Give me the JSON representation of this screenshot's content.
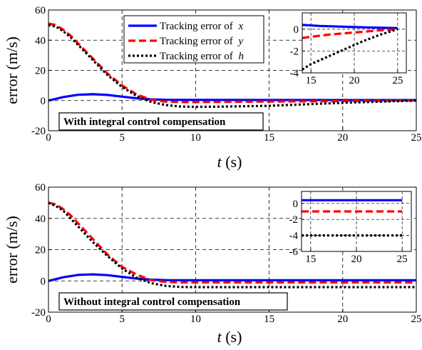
{
  "chart_data": [
    {
      "type": "line",
      "ylabel": "error (m/s)",
      "xlabel": "t (s)",
      "xlabel_var": "t",
      "xlabel_unit": "(s)",
      "xlim": [
        0,
        25
      ],
      "ylim": [
        -20,
        60
      ],
      "xticks": [
        0,
        5,
        10,
        15,
        20,
        25
      ],
      "yticks": [
        -20,
        0,
        20,
        40,
        60
      ],
      "grid": true,
      "legend_position": "top-center",
      "annotation": "With  integral control compensation",
      "series": [
        {
          "name": "Tracking error of x",
          "legend_text": "Tracking error of ",
          "legend_var": "x",
          "color": "#0000ff",
          "style": "solid",
          "x": [
            0,
            1,
            2,
            3,
            4,
            5,
            6,
            7,
            8,
            10,
            25
          ],
          "y": [
            0,
            2.3,
            3.8,
            4.2,
            3.7,
            2.6,
            1.5,
            0.8,
            0.5,
            0.4,
            0.3
          ]
        },
        {
          "name": "Tracking error of y",
          "legend_text": "Tracking error of ",
          "legend_var": "y",
          "color": "#ff0000",
          "style": "dash",
          "x": [
            0,
            0.5,
            1,
            1.5,
            2,
            3,
            4,
            5,
            6,
            7,
            8,
            9,
            10,
            15,
            25
          ],
          "y": [
            51,
            50,
            47,
            43,
            38,
            28,
            18,
            10,
            4,
            0.5,
            -0.8,
            -1,
            -1,
            -0.7,
            0
          ]
        },
        {
          "name": "Tracking error of h",
          "legend_text": "Tracking error of ",
          "legend_var": "h",
          "color": "#000000",
          "style": "dot",
          "x": [
            0,
            0.5,
            1,
            1.5,
            2,
            3,
            4,
            5,
            6,
            7,
            8,
            9,
            10,
            12,
            15,
            20,
            25
          ],
          "y": [
            50,
            49,
            46,
            42,
            37,
            27,
            17,
            9,
            3,
            -1,
            -3,
            -4,
            -4.2,
            -4,
            -3.5,
            -1.5,
            0
          ]
        }
      ],
      "inset": {
        "xlim": [
          14,
          26
        ],
        "ylim": [
          -4,
          1.5
        ],
        "xticks": [
          15,
          20,
          25
        ],
        "yticks": [
          -4,
          -2,
          0
        ],
        "series": [
          {
            "color": "#0000ff",
            "style": "solid",
            "x": [
              14,
              16,
              20,
              25
            ],
            "y": [
              0.4,
              0.3,
              0.2,
              0.1
            ]
          },
          {
            "color": "#ff0000",
            "style": "dash",
            "x": [
              14,
              15,
              17,
              20,
              23,
              25
            ],
            "y": [
              -0.8,
              -0.7,
              -0.5,
              -0.3,
              -0.1,
              0
            ]
          },
          {
            "color": "#000000",
            "style": "dot",
            "x": [
              14,
              15,
              17,
              19,
              21,
              23,
              25
            ],
            "y": [
              -3.7,
              -3.2,
              -2.5,
              -1.8,
              -1.1,
              -0.5,
              0
            ]
          }
        ]
      }
    },
    {
      "type": "line",
      "ylabel": "error (m/s)",
      "xlabel": "t (s)",
      "xlabel_var": "t",
      "xlabel_unit": "(s)",
      "xlim": [
        0,
        25
      ],
      "ylim": [
        -20,
        60
      ],
      "xticks": [
        0,
        5,
        10,
        15,
        20,
        25
      ],
      "yticks": [
        -20,
        0,
        20,
        40,
        60
      ],
      "grid": true,
      "annotation": "Without  integral control compensation",
      "series": [
        {
          "name": "Tracking error of x",
          "color": "#0000ff",
          "style": "solid",
          "x": [
            0,
            1,
            2,
            3,
            4,
            5,
            6,
            7,
            8,
            10,
            25
          ],
          "y": [
            0,
            2.3,
            3.8,
            4.2,
            3.7,
            2.6,
            1.5,
            0.8,
            0.5,
            0.4,
            0.4
          ]
        },
        {
          "name": "Tracking error of y",
          "color": "#ff0000",
          "style": "dash",
          "x": [
            0,
            0.5,
            1,
            1.5,
            2,
            3,
            4,
            5,
            6,
            7,
            8,
            9,
            10,
            25
          ],
          "y": [
            50,
            49,
            46,
            42,
            37,
            27,
            17,
            9,
            4,
            0.5,
            -0.7,
            -1,
            -1,
            -1
          ]
        },
        {
          "name": "Tracking error of h",
          "color": "#000000",
          "style": "dot",
          "x": [
            0,
            0.5,
            1,
            1.5,
            2,
            3,
            4,
            5,
            6,
            7,
            8,
            9,
            10,
            25
          ],
          "y": [
            50,
            48,
            45,
            40,
            35,
            25,
            16,
            8,
            2,
            -1.5,
            -3.2,
            -3.9,
            -4,
            -4
          ]
        }
      ],
      "inset": {
        "xlim": [
          14,
          26
        ],
        "ylim": [
          -6,
          1.5
        ],
        "xticks": [
          15,
          20,
          25
        ],
        "yticks": [
          -6,
          -4,
          -2,
          0
        ],
        "series": [
          {
            "color": "#0000ff",
            "style": "solid",
            "x": [
              14,
              25
            ],
            "y": [
              0.4,
              0.4
            ]
          },
          {
            "color": "#ff0000",
            "style": "dash",
            "x": [
              14,
              25
            ],
            "y": [
              -1,
              -1
            ]
          },
          {
            "color": "#000000",
            "style": "dot",
            "x": [
              14,
              25
            ],
            "y": [
              -4,
              -4
            ]
          }
        ]
      }
    }
  ]
}
